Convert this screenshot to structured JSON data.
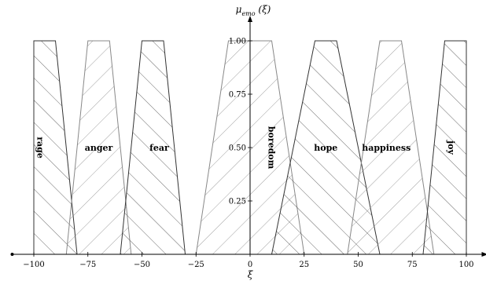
{
  "chart_data": {
    "type": "area",
    "title": "",
    "xlabel": "ξ",
    "ylabel": "μ_emo (ξ)",
    "xlim": [
      -110,
      110
    ],
    "ylim": [
      0,
      1.0
    ],
    "x_ticks": [
      -100,
      -75,
      -50,
      -25,
      0,
      25,
      50,
      75,
      100
    ],
    "y_ticks": [
      0.25,
      0.5,
      0.75,
      1.0
    ],
    "x_tick_labels": [
      "−100",
      "−75",
      "−50",
      "−25",
      "0",
      "25",
      "50",
      "75",
      "100"
    ],
    "y_tick_labels": [
      "0.25",
      "0.50",
      "0.75",
      "1.00"
    ],
    "grid": false,
    "legend": "none",
    "series": [
      {
        "name": "rage",
        "points": [
          [
            -100,
            0
          ],
          [
            -100,
            1
          ],
          [
            -90,
            1
          ],
          [
            -80,
            0
          ]
        ],
        "color": "#333333",
        "hatch": "right",
        "label_at": -97,
        "label_vertical": true
      },
      {
        "name": "anger",
        "points": [
          [
            -85,
            0
          ],
          [
            -75,
            1
          ],
          [
            -65,
            1
          ],
          [
            -55,
            0
          ]
        ],
        "color": "#888888",
        "hatch": "left",
        "label_at": -70,
        "label_vertical": false
      },
      {
        "name": "fear",
        "points": [
          [
            -60,
            0
          ],
          [
            -50,
            1
          ],
          [
            -40,
            1
          ],
          [
            -30,
            0
          ]
        ],
        "color": "#333333",
        "hatch": "right",
        "label_at": -42,
        "label_vertical": false
      },
      {
        "name": "boredom",
        "points": [
          [
            -25,
            0
          ],
          [
            -10,
            1
          ],
          [
            10,
            1
          ],
          [
            25,
            0
          ]
        ],
        "color": "#888888",
        "hatch": "left",
        "label_at": 10,
        "label_vertical": true
      },
      {
        "name": "hope",
        "points": [
          [
            10,
            0
          ],
          [
            30,
            1
          ],
          [
            40,
            1
          ],
          [
            60,
            0
          ]
        ],
        "color": "#333333",
        "hatch": "right",
        "label_at": 35,
        "label_vertical": false
      },
      {
        "name": "happiness",
        "points": [
          [
            45,
            0
          ],
          [
            60,
            1
          ],
          [
            70,
            1
          ],
          [
            85,
            0
          ]
        ],
        "color": "#888888",
        "hatch": "left",
        "label_at": 63,
        "label_vertical": false
      },
      {
        "name": "joy",
        "points": [
          [
            80,
            0
          ],
          [
            90,
            1
          ],
          [
            100,
            1
          ],
          [
            100,
            0
          ]
        ],
        "color": "#333333",
        "hatch": "right",
        "label_at": 93,
        "label_vertical": true
      }
    ]
  }
}
